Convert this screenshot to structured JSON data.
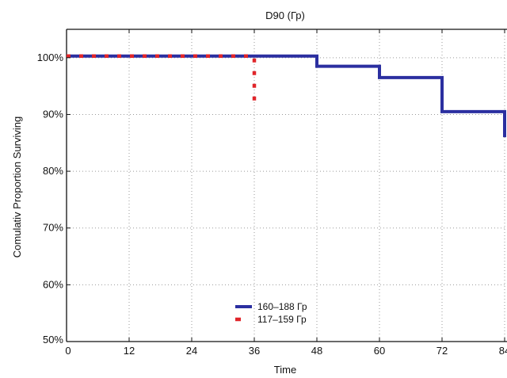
{
  "chart_data": {
    "type": "line",
    "title": "D90 (Гр)",
    "xlabel": "Time",
    "ylabel": "Comulativ Proportion Surviving",
    "xlim": [
      0,
      84
    ],
    "ylim": [
      50,
      105
    ],
    "x_ticks": [
      0,
      12,
      24,
      36,
      48,
      60,
      72,
      84
    ],
    "y_ticks": [
      50,
      60,
      70,
      80,
      90,
      100
    ],
    "y_tick_labels": [
      "50%",
      "60%",
      "70%",
      "80%",
      "90%",
      "100%"
    ],
    "x_tick_labels": [
      "0",
      "12",
      "24",
      "36",
      "48",
      "60",
      "72",
      "84"
    ],
    "grid": true,
    "legend_position": "bottom-center",
    "series": [
      {
        "name": "160–188 Гр",
        "color": "#2b2fa0",
        "style": "solid",
        "x": [
          0,
          48,
          48,
          60,
          60,
          72,
          72,
          84,
          84
        ],
        "y": [
          100.3,
          100.3,
          98.5,
          98.5,
          96.5,
          96.5,
          90.5,
          90.5,
          86
        ]
      },
      {
        "name": "117–159 Гр",
        "color": "#e0252a",
        "style": "dotted",
        "x": [
          0,
          36,
          36
        ],
        "y": [
          100.3,
          100.3,
          91
        ]
      }
    ]
  }
}
